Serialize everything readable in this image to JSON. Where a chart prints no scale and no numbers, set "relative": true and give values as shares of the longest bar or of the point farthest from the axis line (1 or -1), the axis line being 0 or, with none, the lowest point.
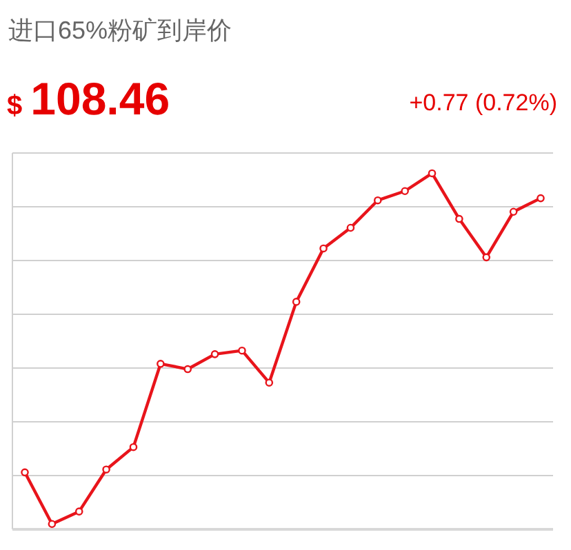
{
  "chart_data": {
    "type": "line",
    "title": "进口65%粉矿到岸价",
    "annotations": [
      "$ 108.46",
      "+0.77 (0.72%)"
    ],
    "relative": true,
    "categories": [
      null,
      null,
      null,
      null,
      null,
      null,
      null,
      null,
      null,
      null,
      null,
      null,
      null,
      null,
      null,
      null,
      null,
      null,
      null,
      null
    ],
    "series": [
      {
        "color": "#e8141b",
        "values": [
          0.16,
          0.015,
          0.05,
          0.168,
          0.231,
          0.465,
          0.45,
          0.492,
          0.502,
          0.412,
          0.639,
          0.789,
          0.847,
          0.924,
          0.95,
          1,
          0.872,
          0.764,
          0.892,
          0.93
        ]
      }
    ],
    "grid": "y",
    "marker": "circle",
    "line_style": "solid"
  }
}
